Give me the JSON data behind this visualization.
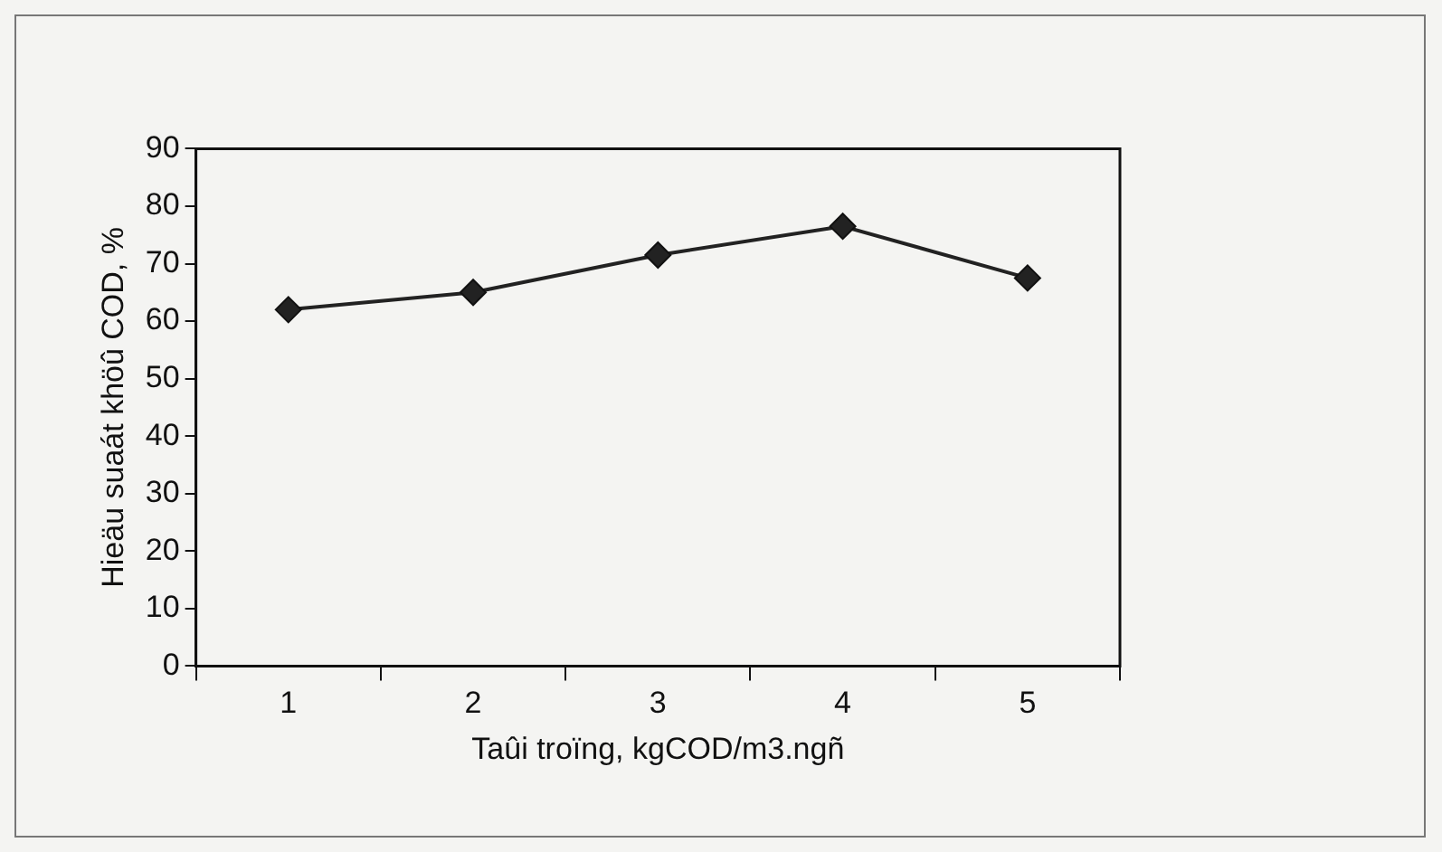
{
  "chart_data": {
    "type": "line",
    "xlabel": "Taûi troïng, kgCOD/m3.ngñ",
    "ylabel": "Hieäu suaát khöû COD, %",
    "categories": [
      "1",
      "2",
      "3",
      "4",
      "5"
    ],
    "series": [
      {
        "color": "#222222",
        "values": [
          62,
          65,
          71.5,
          76.5,
          67.5
        ]
      }
    ],
    "ylim": [
      0,
      90
    ],
    "yticks": [
      0,
      10,
      20,
      30,
      40,
      50,
      60,
      70,
      80,
      90
    ],
    "grid": false,
    "legend": false,
    "marker": "diamond",
    "line_style": "solid"
  }
}
